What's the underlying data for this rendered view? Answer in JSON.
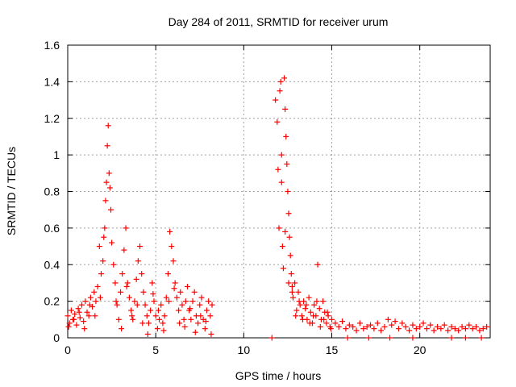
{
  "chart_data": {
    "type": "scatter",
    "title": "Day 284 of 2011, SRMTID for receiver urum",
    "xlabel": "GPS time / hours",
    "ylabel": "SRMTID / TECUs",
    "xlim": [
      0,
      24
    ],
    "ylim": [
      0,
      1.6
    ],
    "xticks": [
      0,
      5,
      10,
      15,
      20
    ],
    "xtick_labels": [
      "0",
      "5",
      "10",
      "15",
      "20"
    ],
    "yticks": [
      0,
      0.2,
      0.4,
      0.6,
      0.8,
      1.0,
      1.2,
      1.4,
      1.6
    ],
    "ytick_labels": [
      "0",
      "0.2",
      "0.4",
      "0.6",
      "0.8",
      "1",
      "1.2",
      "1.4",
      "1.6"
    ],
    "grid": true,
    "color": "#ff0000",
    "marker": "+",
    "series": [
      {
        "name": "SRMTID",
        "x": [
          0.0,
          0.1,
          0.2,
          0.3,
          0.4,
          0.5,
          0.6,
          0.7,
          0.8,
          0.9,
          1.0,
          1.1,
          1.2,
          1.3,
          1.4,
          1.5,
          1.6,
          1.7,
          1.8,
          1.9,
          2.0,
          2.05,
          2.1,
          2.15,
          2.2,
          2.25,
          2.3,
          2.35,
          2.4,
          2.45,
          2.5,
          2.6,
          2.7,
          2.8,
          2.9,
          3.0,
          3.1,
          3.2,
          3.3,
          3.4,
          3.5,
          3.6,
          3.7,
          3.8,
          3.9,
          4.0,
          4.1,
          4.2,
          4.3,
          4.4,
          4.5,
          4.6,
          4.7,
          4.8,
          4.9,
          5.0,
          5.1,
          5.2,
          5.3,
          5.4,
          5.5,
          5.6,
          5.7,
          5.8,
          5.9,
          6.0,
          6.1,
          6.2,
          6.3,
          6.4,
          6.5,
          6.6,
          6.7,
          6.8,
          6.9,
          7.0,
          7.1,
          7.2,
          7.3,
          7.4,
          7.5,
          7.6,
          7.7,
          7.8,
          7.9,
          8.0,
          8.1,
          8.2,
          0.05,
          0.35,
          0.65,
          0.95,
          1.25,
          1.55,
          1.85,
          2.75,
          3.05,
          3.35,
          3.65,
          3.95,
          4.25,
          4.55,
          4.85,
          5.15,
          5.45,
          5.75,
          6.05,
          6.35,
          6.65,
          6.95,
          7.25,
          7.55,
          7.85,
          8.15,
          11.8,
          11.9,
          12.0,
          12.05,
          12.1,
          12.15,
          12.2,
          12.25,
          12.3,
          12.35,
          12.4,
          12.45,
          12.5,
          12.55,
          12.6,
          12.65,
          12.7,
          12.75,
          12.8,
          12.9,
          13.0,
          13.1,
          13.2,
          13.3,
          13.4,
          13.5,
          13.6,
          13.7,
          13.8,
          13.9,
          14.0,
          14.1,
          14.2,
          14.3,
          14.4,
          14.5,
          14.6,
          14.7,
          14.8,
          14.9,
          15.0,
          15.2,
          15.4,
          15.6,
          15.8,
          16.0,
          16.2,
          16.4,
          16.6,
          16.8,
          17.0,
          17.2,
          17.4,
          17.6,
          17.8,
          18.0,
          18.2,
          18.4,
          18.6,
          18.8,
          19.0,
          19.2,
          19.4,
          19.6,
          19.8,
          20.0,
          20.2,
          20.4,
          20.6,
          20.8,
          21.0,
          21.2,
          21.4,
          21.6,
          21.8,
          22.0,
          22.2,
          22.4,
          22.6,
          22.8,
          23.0,
          23.2,
          23.4,
          23.6,
          23.8,
          11.95,
          12.15,
          12.35,
          12.55,
          12.75,
          12.95,
          13.15,
          13.35,
          13.55,
          13.75,
          13.95,
          14.15,
          14.35,
          14.55,
          14.75,
          14.95,
          11.6,
          15.9,
          17.1,
          18.3,
          19.6,
          21.8,
          22.6,
          23.5
        ],
        "y": [
          0.12,
          0.08,
          0.15,
          0.1,
          0.13,
          0.07,
          0.16,
          0.11,
          0.18,
          0.09,
          0.2,
          0.14,
          0.12,
          0.22,
          0.17,
          0.25,
          0.2,
          0.28,
          0.5,
          0.35,
          0.42,
          0.55,
          0.6,
          0.75,
          0.85,
          1.05,
          1.16,
          0.9,
          0.82,
          0.7,
          0.52,
          0.4,
          0.3,
          0.18,
          0.1,
          0.25,
          0.35,
          0.48,
          0.6,
          0.3,
          0.22,
          0.15,
          0.1,
          0.2,
          0.32,
          0.42,
          0.5,
          0.35,
          0.25,
          0.18,
          0.12,
          0.08,
          0.15,
          0.3,
          0.2,
          0.12,
          0.05,
          0.1,
          0.18,
          0.08,
          0.12,
          0.22,
          0.35,
          0.58,
          0.5,
          0.42,
          0.3,
          0.22,
          0.15,
          0.25,
          0.18,
          0.1,
          0.2,
          0.28,
          0.15,
          0.1,
          0.2,
          0.25,
          0.12,
          0.08,
          0.18,
          0.22,
          0.1,
          0.05,
          0.15,
          0.2,
          0.12,
          0.18,
          0.06,
          0.1,
          0.14,
          0.05,
          0.18,
          0.12,
          0.22,
          0.2,
          0.05,
          0.28,
          0.12,
          0.18,
          0.08,
          0.02,
          0.24,
          0.15,
          0.04,
          0.2,
          0.27,
          0.08,
          0.06,
          0.16,
          0.03,
          0.12,
          0.09,
          0.02,
          1.3,
          1.18,
          0.6,
          1.35,
          1.4,
          1.0,
          0.5,
          0.38,
          1.42,
          1.25,
          1.1,
          0.95,
          0.8,
          0.68,
          0.55,
          0.45,
          0.35,
          0.28,
          0.22,
          0.3,
          0.15,
          0.25,
          0.18,
          0.12,
          0.2,
          0.16,
          0.1,
          0.22,
          0.14,
          0.08,
          0.18,
          0.12,
          0.4,
          0.16,
          0.1,
          0.2,
          0.14,
          0.08,
          0.12,
          0.06,
          0.1,
          0.08,
          0.06,
          0.09,
          0.05,
          0.07,
          0.06,
          0.04,
          0.08,
          0.05,
          0.06,
          0.07,
          0.05,
          0.08,
          0.04,
          0.06,
          0.1,
          0.07,
          0.09,
          0.05,
          0.08,
          0.06,
          0.04,
          0.07,
          0.05,
          0.06,
          0.08,
          0.05,
          0.07,
          0.04,
          0.06,
          0.05,
          0.07,
          0.04,
          0.06,
          0.05,
          0.04,
          0.06,
          0.05,
          0.07,
          0.05,
          0.06,
          0.04,
          0.05,
          0.06,
          0.92,
          0.85,
          0.58,
          0.3,
          0.25,
          0.12,
          0.2,
          0.1,
          0.18,
          0.08,
          0.12,
          0.2,
          0.06,
          0.1,
          0.14,
          0.05,
          0.0,
          0.0,
          0.0,
          0.0,
          0.0,
          0.0,
          0.0,
          0.0
        ]
      }
    ]
  }
}
